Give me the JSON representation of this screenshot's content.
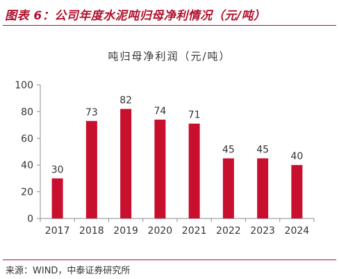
{
  "figure_title": "图表 6：公司年度水泥吨归母净利情况（元/吨）",
  "source": "来源：WIND，中泰证券研究所",
  "colors": {
    "bar": "#c8102e",
    "accent": "#b0102d",
    "axis": "#8c8c8c",
    "text": "#333333"
  },
  "chart_data": {
    "type": "bar",
    "title": "吨归母净利润（元/吨）",
    "categories": [
      "2017",
      "2018",
      "2019",
      "2020",
      "2021",
      "2022",
      "2023",
      "2024"
    ],
    "values": [
      30,
      73,
      82,
      74,
      71,
      45,
      45,
      40
    ],
    "data_labels": [
      "30",
      "73",
      "82",
      "74",
      "71",
      "45",
      "45",
      "40"
    ],
    "y_ticks": [
      0,
      20,
      40,
      60,
      80,
      100
    ],
    "ylim": [
      0,
      100
    ],
    "xlabel": "",
    "ylabel": "",
    "grid": false
  }
}
